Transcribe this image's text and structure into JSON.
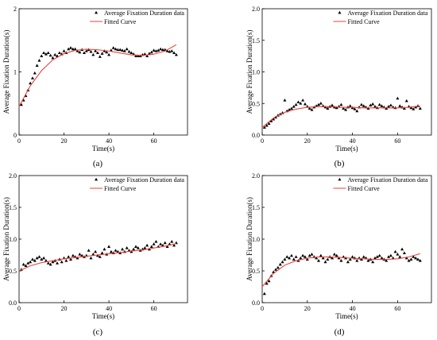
{
  "panels": [
    {
      "label": "(a)",
      "chart_data": {
        "type": "scatter",
        "xlabel": "Time(s)",
        "ylabel": "Average Fixation Duration(s)",
        "xlim": [
          0,
          75
        ],
        "ylim": [
          0,
          2
        ],
        "x_ticks": [
          0,
          20,
          40,
          60
        ],
        "y_ticks": [
          0,
          1,
          2
        ],
        "legend_position": "top-right",
        "series": [
          {
            "name": "Average Fixation Duration data",
            "marker": "triangle",
            "color": "#000000",
            "x": [
              1,
              2,
              3,
              4,
              5,
              6,
              7,
              8,
              9,
              10,
              11,
              12,
              13,
              14,
              15,
              16,
              17,
              18,
              19,
              20,
              21,
              22,
              23,
              24,
              25,
              26,
              27,
              28,
              29,
              30,
              31,
              32,
              33,
              34,
              35,
              36,
              37,
              38,
              39,
              40,
              41,
              42,
              43,
              44,
              45,
              46,
              47,
              48,
              49,
              50,
              51,
              52,
              53,
              54,
              55,
              56,
              57,
              58,
              59,
              60,
              61,
              62,
              63,
              64,
              65,
              66,
              67,
              68,
              69,
              70
            ],
            "y": [
              0.48,
              0.55,
              0.62,
              0.71,
              0.82,
              0.9,
              0.98,
              1.1,
              1.18,
              1.25,
              1.3,
              1.28,
              1.3,
              1.26,
              1.22,
              1.27,
              1.25,
              1.3,
              1.28,
              1.33,
              1.3,
              1.36,
              1.38,
              1.36,
              1.36,
              1.33,
              1.31,
              1.35,
              1.3,
              1.33,
              1.35,
              1.32,
              1.27,
              1.33,
              1.3,
              1.24,
              1.29,
              1.33,
              1.31,
              1.27,
              1.34,
              1.38,
              1.36,
              1.35,
              1.35,
              1.34,
              1.33,
              1.36,
              1.32,
              1.3,
              1.28,
              1.25,
              1.25,
              1.25,
              1.27,
              1.28,
              1.25,
              1.29,
              1.31,
              1.34,
              1.33,
              1.34,
              1.36,
              1.35,
              1.35,
              1.33,
              1.32,
              1.33,
              1.3,
              1.27
            ]
          },
          {
            "name": "Fitted Curve",
            "line": true,
            "color": "#e8423a",
            "x": [
              0,
              5,
              10,
              15,
              20,
              25,
              30,
              35,
              40,
              45,
              50,
              55,
              60,
              65,
              70
            ],
            "y": [
              0.45,
              0.78,
              1.02,
              1.19,
              1.29,
              1.34,
              1.36,
              1.35,
              1.33,
              1.3,
              1.27,
              1.26,
              1.28,
              1.33,
              1.43
            ]
          }
        ]
      }
    },
    {
      "label": "(b)",
      "chart_data": {
        "type": "scatter",
        "xlabel": "Time(s)",
        "ylabel": "Average Fixation Duration(s)",
        "xlim": [
          0,
          75
        ],
        "ylim": [
          0,
          2
        ],
        "x_ticks": [
          0,
          20,
          40,
          60
        ],
        "y_ticks": [
          0.0,
          0.5,
          1.0,
          1.5,
          2.0
        ],
        "y_tick_labels": [
          "0.0",
          "0.5",
          "1.0",
          "1.5",
          "2.0"
        ],
        "legend_position": "top-right",
        "series": [
          {
            "name": "Average Fixation Duration data",
            "marker": "triangle",
            "color": "#000000",
            "x": [
              1,
              2,
              3,
              4,
              5,
              6,
              7,
              8,
              9,
              10,
              11,
              12,
              13,
              14,
              15,
              16,
              17,
              18,
              19,
              20,
              21,
              22,
              23,
              24,
              25,
              26,
              27,
              28,
              29,
              30,
              31,
              32,
              33,
              34,
              35,
              36,
              37,
              38,
              39,
              40,
              41,
              42,
              43,
              44,
              45,
              46,
              47,
              48,
              49,
              50,
              51,
              52,
              53,
              54,
              55,
              56,
              57,
              58,
              59,
              60,
              61,
              62,
              63,
              64,
              65,
              66,
              67,
              68,
              69,
              70
            ],
            "y": [
              0.12,
              0.15,
              0.18,
              0.22,
              0.25,
              0.28,
              0.31,
              0.33,
              0.35,
              0.55,
              0.38,
              0.4,
              0.42,
              0.45,
              0.48,
              0.52,
              0.5,
              0.55,
              0.49,
              0.45,
              0.42,
              0.4,
              0.44,
              0.46,
              0.48,
              0.5,
              0.46,
              0.44,
              0.42,
              0.45,
              0.47,
              0.44,
              0.43,
              0.45,
              0.48,
              0.42,
              0.4,
              0.44,
              0.46,
              0.43,
              0.41,
              0.38,
              0.44,
              0.48,
              0.46,
              0.44,
              0.42,
              0.47,
              0.49,
              0.45,
              0.43,
              0.48,
              0.46,
              0.44,
              0.42,
              0.45,
              0.47,
              0.44,
              0.43,
              0.58,
              0.46,
              0.44,
              0.42,
              0.54,
              0.45,
              0.43,
              0.41,
              0.44,
              0.46,
              0.42
            ]
          },
          {
            "name": "Fitted Curve",
            "line": true,
            "color": "#e8423a",
            "x": [
              0,
              5,
              10,
              15,
              20,
              25,
              30,
              35,
              40,
              45,
              50,
              55,
              60,
              65,
              70
            ],
            "y": [
              0.12,
              0.27,
              0.36,
              0.41,
              0.44,
              0.45,
              0.45,
              0.44,
              0.44,
              0.43,
              0.43,
              0.43,
              0.43,
              0.44,
              0.46
            ]
          }
        ]
      }
    },
    {
      "label": "(c)",
      "chart_data": {
        "type": "scatter",
        "xlabel": "Time(s)",
        "ylabel": "Average Fixation Duration(s)",
        "xlim": [
          0,
          75
        ],
        "ylim": [
          0,
          2
        ],
        "x_ticks": [
          0,
          20,
          40,
          60
        ],
        "y_ticks": [
          0.0,
          0.5,
          1.0,
          1.5,
          2.0
        ],
        "y_tick_labels": [
          "0.0",
          "0.5",
          "1.0",
          "1.5",
          "2.0"
        ],
        "legend_position": "top-right",
        "series": [
          {
            "name": "Average Fixation Duration data",
            "marker": "triangle",
            "color": "#000000",
            "x": [
              1,
              2,
              3,
              4,
              5,
              6,
              7,
              8,
              9,
              10,
              11,
              12,
              13,
              14,
              15,
              16,
              17,
              18,
              19,
              20,
              21,
              22,
              23,
              24,
              25,
              26,
              27,
              28,
              29,
              30,
              31,
              32,
              33,
              34,
              35,
              36,
              37,
              38,
              39,
              40,
              41,
              42,
              43,
              44,
              45,
              46,
              47,
              48,
              49,
              50,
              51,
              52,
              53,
              54,
              55,
              56,
              57,
              58,
              59,
              60,
              61,
              62,
              63,
              64,
              65,
              66,
              67,
              68,
              69,
              70
            ],
            "y": [
              0.52,
              0.6,
              0.58,
              0.62,
              0.64,
              0.68,
              0.66,
              0.7,
              0.72,
              0.68,
              0.7,
              0.66,
              0.62,
              0.6,
              0.64,
              0.66,
              0.62,
              0.68,
              0.64,
              0.7,
              0.66,
              0.72,
              0.68,
              0.74,
              0.72,
              0.7,
              0.76,
              0.74,
              0.72,
              0.74,
              0.82,
              0.7,
              0.76,
              0.8,
              0.74,
              0.72,
              0.78,
              0.84,
              0.76,
              0.88,
              0.8,
              0.78,
              0.82,
              0.8,
              0.78,
              0.84,
              0.8,
              0.86,
              0.82,
              0.8,
              0.84,
              0.88,
              0.86,
              0.82,
              0.84,
              0.86,
              0.9,
              0.84,
              0.88,
              0.92,
              0.96,
              0.88,
              0.92,
              0.9,
              0.94,
              0.88,
              0.92,
              0.96,
              0.9,
              0.94
            ]
          },
          {
            "name": "Fitted Curve",
            "line": true,
            "color": "#e8423a",
            "x": [
              0,
              5,
              10,
              15,
              20,
              25,
              30,
              35,
              40,
              45,
              50,
              55,
              60,
              65,
              70
            ],
            "y": [
              0.5,
              0.58,
              0.63,
              0.66,
              0.69,
              0.71,
              0.73,
              0.75,
              0.77,
              0.79,
              0.81,
              0.83,
              0.86,
              0.89,
              0.93
            ]
          }
        ]
      }
    },
    {
      "label": "(d)",
      "chart_data": {
        "type": "scatter",
        "xlabel": "Time(s)",
        "ylabel": "Average Fixation Duration(s)",
        "xlim": [
          0,
          75
        ],
        "ylim": [
          0,
          2
        ],
        "x_ticks": [
          0,
          20,
          40,
          60
        ],
        "y_ticks": [
          0.0,
          0.5,
          1.0,
          1.5,
          2.0
        ],
        "y_tick_labels": [
          "0.0",
          "0.5",
          "1.0",
          "1.5",
          "2.0"
        ],
        "legend_position": "top-right",
        "series": [
          {
            "name": "Average Fixation Duration data",
            "marker": "triangle",
            "color": "#000000",
            "x": [
              1,
              2,
              3,
              4,
              5,
              6,
              7,
              8,
              9,
              10,
              11,
              12,
              13,
              14,
              15,
              16,
              17,
              18,
              19,
              20,
              21,
              22,
              23,
              24,
              25,
              26,
              27,
              28,
              29,
              30,
              31,
              32,
              33,
              34,
              35,
              36,
              37,
              38,
              39,
              40,
              41,
              42,
              43,
              44,
              45,
              46,
              47,
              48,
              49,
              50,
              51,
              52,
              53,
              54,
              55,
              56,
              57,
              58,
              59,
              60,
              61,
              62,
              63,
              64,
              65,
              66,
              67,
              68,
              69,
              70
            ],
            "y": [
              0.14,
              0.3,
              0.34,
              0.42,
              0.48,
              0.52,
              0.55,
              0.6,
              0.64,
              0.68,
              0.72,
              0.7,
              0.74,
              0.68,
              0.72,
              0.66,
              0.7,
              0.74,
              0.72,
              0.68,
              0.74,
              0.76,
              0.72,
              0.7,
              0.66,
              0.74,
              0.7,
              0.64,
              0.68,
              0.72,
              0.7,
              0.76,
              0.74,
              0.7,
              0.66,
              0.72,
              0.7,
              0.64,
              0.68,
              0.72,
              0.7,
              0.66,
              0.7,
              0.68,
              0.72,
              0.7,
              0.66,
              0.68,
              0.64,
              0.7,
              0.72,
              0.74,
              0.7,
              0.68,
              0.66,
              0.72,
              0.74,
              0.7,
              0.8,
              0.76,
              0.72,
              0.84,
              0.78,
              0.7,
              0.66,
              0.68,
              0.72,
              0.7,
              0.68,
              0.66
            ]
          },
          {
            "name": "Fitted Curve",
            "line": true,
            "color": "#e8423a",
            "x": [
              0,
              5,
              10,
              15,
              20,
              25,
              30,
              35,
              40,
              45,
              50,
              55,
              60,
              65,
              70
            ],
            "y": [
              0.25,
              0.46,
              0.59,
              0.66,
              0.7,
              0.72,
              0.72,
              0.71,
              0.7,
              0.69,
              0.68,
              0.68,
              0.69,
              0.72,
              0.77
            ]
          }
        ]
      }
    }
  ]
}
